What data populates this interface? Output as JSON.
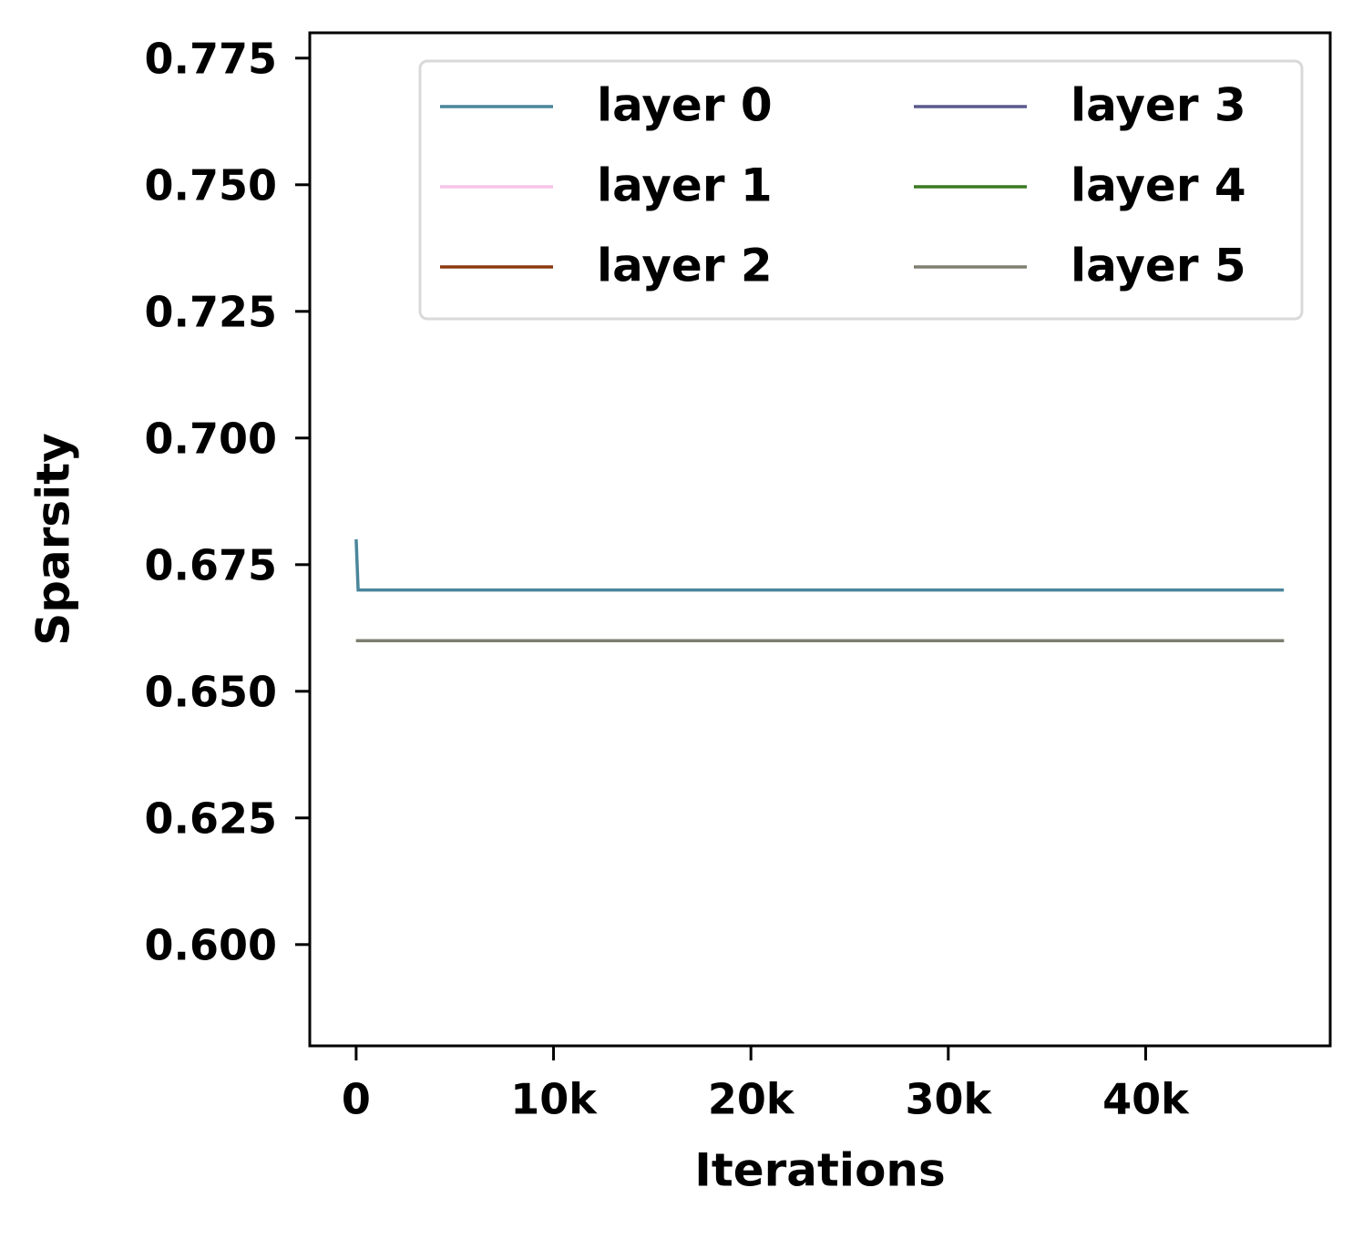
{
  "chart_data": {
    "type": "line",
    "xlabel": "Iterations",
    "ylabel": "Sparsity",
    "x": [
      0,
      100,
      47000
    ],
    "series": [
      {
        "name": "layer 0",
        "color": "#4a869c",
        "values": [
          0.68,
          0.67,
          0.67
        ]
      },
      {
        "name": "layer 1",
        "color": "#f7c3e8",
        "values": [
          0.66,
          0.66,
          0.66
        ]
      },
      {
        "name": "layer 2",
        "color": "#8b3a0f",
        "values": [
          0.66,
          0.66,
          0.66
        ]
      },
      {
        "name": "layer 3",
        "color": "#5a5a8e",
        "values": [
          0.66,
          0.66,
          0.66
        ]
      },
      {
        "name": "layer 4",
        "color": "#3a7a22",
        "values": [
          0.66,
          0.66,
          0.66
        ]
      },
      {
        "name": "layer 5",
        "color": "#7f7f72",
        "values": [
          0.66,
          0.66,
          0.66
        ]
      }
    ],
    "xlim": [
      -2350,
      49350
    ],
    "xticks": [
      0,
      {
        "value": 10000,
        "label": "10k"
      },
      {
        "value": 20000,
        "label": "20k"
      },
      {
        "value": 30000,
        "label": "30k"
      },
      {
        "value": 40000,
        "label": "40k"
      }
    ],
    "ylim": [
      0.58,
      0.78
    ],
    "yticks": [
      {
        "value": 0.6,
        "label": "0.600"
      },
      0.625,
      {
        "value": 0.65,
        "label": "0.650"
      },
      0.675,
      {
        "value": 0.7,
        "label": "0.700"
      },
      0.725,
      {
        "value": 0.75,
        "label": "0.750"
      },
      0.775
    ],
    "legend": "upper right",
    "legend_columns": 2,
    "grid": false
  }
}
